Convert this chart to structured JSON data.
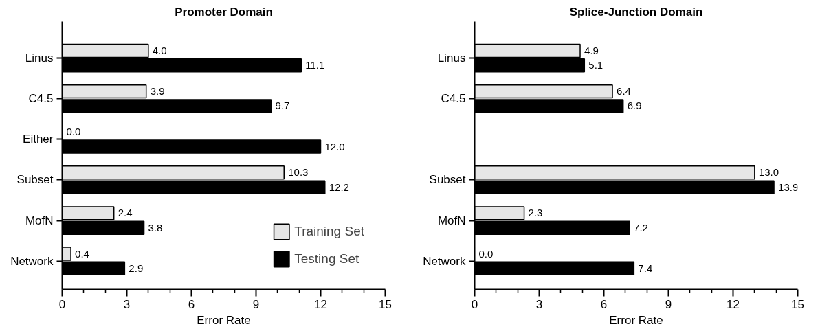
{
  "chart_data": [
    {
      "type": "bar",
      "orientation": "horizontal",
      "title": "Promoter Domain",
      "xlabel": "Error Rate",
      "categories": [
        "Linus",
        "C4.5",
        "Either",
        "Subset",
        "MofN",
        "Network"
      ],
      "series": [
        {
          "name": "Training Set",
          "color": "#e6e6e6",
          "values": [
            4.0,
            3.9,
            0.0,
            10.3,
            2.4,
            0.4
          ],
          "value_labels": [
            "4.0",
            "3.9",
            "0.0",
            "10.3",
            "2.4",
            "0.4"
          ]
        },
        {
          "name": "Testing Set",
          "color": "#000000",
          "values": [
            11.1,
            9.7,
            12.0,
            12.2,
            3.8,
            2.9
          ],
          "value_labels": [
            "11.1",
            "9.7",
            "12.0",
            "12.2",
            "3.8",
            "2.9"
          ]
        }
      ],
      "xlim": [
        0,
        15
      ],
      "xticks": [
        0,
        3,
        6,
        9,
        12,
        15
      ],
      "grid": false,
      "legend": "bottom right"
    },
    {
      "type": "bar",
      "orientation": "horizontal",
      "title": "Splice-Junction Domain",
      "xlabel": "Error Rate",
      "categories": [
        "Linus",
        "C4.5",
        null,
        "Subset",
        "MofN",
        "Network"
      ],
      "series": [
        {
          "color": "#e6e6e6",
          "values": [
            4.9,
            6.4,
            null,
            13.0,
            2.3,
            0.0
          ],
          "value_labels": [
            "4.9",
            "6.4",
            null,
            "13.0",
            "2.3",
            "0.0"
          ]
        },
        {
          "color": "#000000",
          "values": [
            5.1,
            6.9,
            null,
            13.9,
            7.2,
            7.4
          ],
          "value_labels": [
            "5.1",
            "6.9",
            null,
            "13.9",
            "7.2",
            "7.4"
          ]
        }
      ],
      "xlim": [
        0,
        15
      ],
      "xticks": [
        0,
        3,
        6,
        9,
        12,
        15
      ],
      "grid": false,
      "legend": false
    }
  ]
}
